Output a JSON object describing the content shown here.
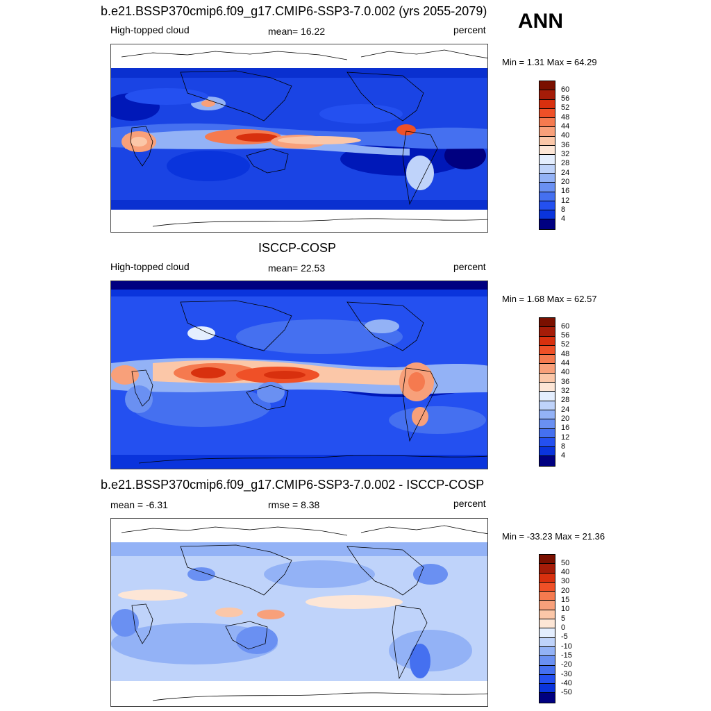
{
  "season": "ANN",
  "panels": [
    {
      "title": "b.e21.BSSP370cmip6.f09_g17.CMIP6-SSP3-7.0.002 (yrs 2055-2079)",
      "left_label": "High-topped cloud",
      "center_label": "mean=  16.22",
      "right_label": "percent",
      "minmax": "Min =   1.31 Max =  64.29",
      "colorbar_labels": [
        "60",
        "56",
        "52",
        "48",
        "44",
        "40",
        "36",
        "32",
        "28",
        "24",
        "20",
        "16",
        "12",
        "8",
        "4"
      ]
    },
    {
      "title": "ISCCP-COSP",
      "left_label": "High-topped cloud",
      "center_label": "mean=  22.53",
      "right_label": "percent",
      "minmax": "Min =   1.68 Max =  62.57",
      "colorbar_labels": [
        "60",
        "56",
        "52",
        "48",
        "44",
        "40",
        "36",
        "32",
        "28",
        "24",
        "20",
        "16",
        "12",
        "8",
        "4"
      ]
    },
    {
      "title": "b.e21.BSSP370cmip6.f09_g17.CMIP6-SSP3-7.0.002 - ISCCP-COSP",
      "left_label": "mean =  -6.31",
      "center_label": "rmse =   8.38",
      "right_label": "percent",
      "minmax": "Min = -33.23 Max =  21.36",
      "colorbar_labels": [
        "50",
        "40",
        "30",
        "20",
        "15",
        "10",
        "5",
        "0",
        "-5",
        "-10",
        "-15",
        "-20",
        "-30",
        "-40",
        "-50"
      ]
    }
  ],
  "colors": {
    "ramp": [
      "#000080",
      "#0018b8",
      "#0a34dc",
      "#2450f0",
      "#4570f0",
      "#6a90f2",
      "#93b2f6",
      "#bfd3fa",
      "#e4eefe",
      "#fde6d6",
      "#fbc7a8",
      "#f8a07a",
      "#f57a4f",
      "#ef5027",
      "#d8300e",
      "#a51c08",
      "#7a1000"
    ]
  }
}
